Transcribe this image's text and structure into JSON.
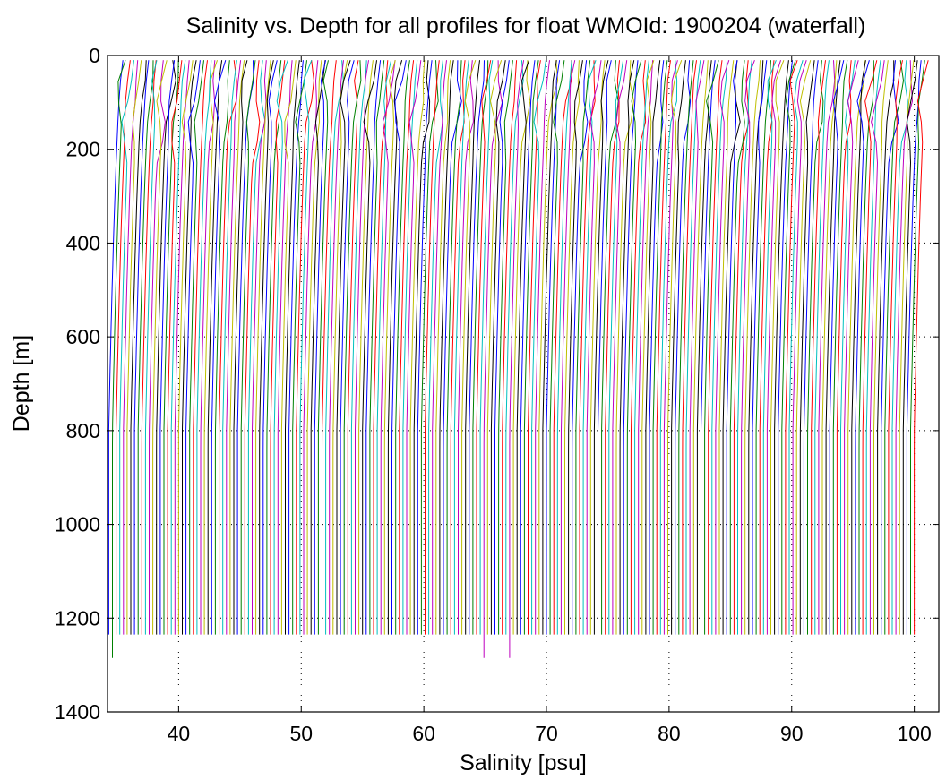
{
  "chart_data": {
    "type": "line",
    "title": "Salinity vs. Depth for all profiles for float WMOId: 1900204 (waterfall)",
    "xlabel": "Salinity [psu]",
    "ylabel": "Depth [m]",
    "xlim": [
      34.2,
      102.0
    ],
    "ylim": [
      0,
      1400
    ],
    "y_reversed": true,
    "grid": true,
    "x_ticks": [
      40,
      50,
      60,
      70,
      80,
      90,
      100
    ],
    "y_ticks": [
      0,
      200,
      400,
      600,
      800,
      1000,
      1200,
      1400
    ],
    "colors": [
      "#0000ff",
      "#008000",
      "#ff0000",
      "#00bfbf",
      "#bf00bf",
      "#bfbf00",
      "#000000"
    ],
    "waterfall": {
      "profile_count": 220,
      "first_profile_salinity_at_surface": 35.6,
      "salinity_offset_between_profiles": 0.3,
      "profile_top_depth_m": 10,
      "profile_bottom_depth_m": 1235,
      "deep_profiles_bottom_depth_m": 1285,
      "salinity_change_surface_to_bottom_psu": -1.3
    }
  }
}
